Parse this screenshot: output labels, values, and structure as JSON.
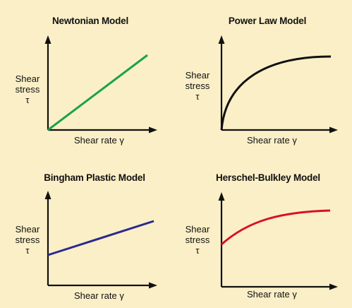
{
  "colors": {
    "background": "#fbefc7",
    "axis": "#111111",
    "newtonian": "#1aa34a",
    "power_law": "#111111",
    "bingham": "#2b2a8c",
    "herschel_bulkley": "#d8102a"
  },
  "panels": [
    {
      "title": "Newtonian Model",
      "ylabel": [
        "Shear",
        "stress",
        "τ"
      ],
      "xlabel": "Shear rate γ",
      "curve": "linear-through-origin",
      "color": "#1aa34a"
    },
    {
      "title": "Power Law Model",
      "ylabel": [
        "Shear",
        "stress",
        "τ"
      ],
      "xlabel": "Shear rate γ",
      "curve": "concave-through-origin",
      "color": "#111111"
    },
    {
      "title": "Bingham Plastic Model",
      "ylabel": [
        "Shear",
        "stress",
        "τ"
      ],
      "xlabel": "Shear rate γ",
      "curve": "linear-with-yield-intercept",
      "color": "#2b2a8c"
    },
    {
      "title": "Herschel-Bulkley Model",
      "ylabel": [
        "Shear",
        "stress",
        "τ"
      ],
      "xlabel": "Shear rate γ",
      "curve": "concave-with-yield-intercept",
      "color": "#d8102a"
    }
  ]
}
